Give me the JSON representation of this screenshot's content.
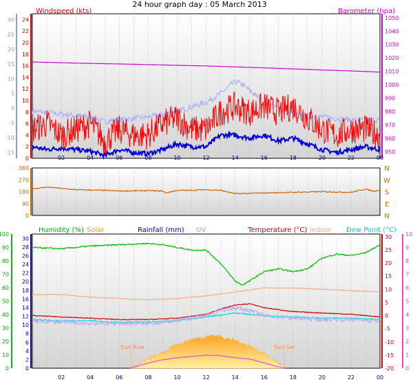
{
  "title": "24 hour graph day : 05 March 2013",
  "chart_data": [
    {
      "type": "line",
      "panel": "wind-pressure",
      "x_label_ticks": [
        "02",
        "04",
        "06",
        "08",
        "10",
        "12",
        "14",
        "16",
        "18",
        "20",
        "22",
        "00"
      ],
      "left_axis": {
        "label": "Windspeed (kts)",
        "ticks": [
          0,
          2,
          4,
          6,
          8,
          10,
          12,
          14,
          16,
          18,
          20,
          22,
          24
        ],
        "range": [
          0,
          25
        ]
      },
      "far_left_axis": {
        "ticks": [
          -15,
          -10,
          -5,
          0,
          5,
          10,
          15,
          20,
          25,
          30
        ],
        "range": [
          -17,
          32
        ]
      },
      "right_axis": {
        "label": "Barometer (hpa)",
        "ticks": [
          950,
          960,
          970,
          980,
          990,
          1000,
          1010,
          1020,
          1030,
          1040,
          1050
        ],
        "range": [
          945,
          1053
        ]
      },
      "series": [
        {
          "name": "Barometer",
          "color": "#cc00cc",
          "axis": "right",
          "x": [
            0,
            2,
            4,
            6,
            8,
            10,
            12,
            14,
            16,
            18,
            20,
            22,
            24
          ],
          "values": [
            1017,
            1016.4,
            1015.9,
            1015.5,
            1015,
            1014.5,
            1014,
            1013.3,
            1012.6,
            1011.8,
            1011,
            1010.3,
            1009.4
          ]
        },
        {
          "color": "#aab0ff",
          "axis": "far_left",
          "x": [
            0,
            2,
            4,
            5,
            6,
            8,
            10,
            12,
            13,
            14,
            14.5,
            15,
            16,
            18,
            20,
            22,
            24
          ],
          "values": [
            -1,
            -2,
            -3,
            -4.5,
            -4,
            -3,
            -1,
            2,
            5,
            9,
            8,
            6,
            2,
            -2,
            -3,
            -4,
            -4
          ]
        },
        {
          "color": "#0000dd",
          "axis": "left",
          "x": [
            0,
            1,
            2,
            3,
            4,
            5,
            6,
            7,
            8,
            9,
            10,
            11,
            12,
            13,
            14,
            15,
            16,
            17,
            18,
            19,
            20,
            21,
            22,
            23,
            24
          ],
          "values": [
            2,
            1.5,
            1.8,
            1.5,
            1.2,
            0.5,
            1.5,
            1,
            0.8,
            1.5,
            2.5,
            2,
            2,
            4,
            4,
            3.5,
            4,
            3,
            3.5,
            2.5,
            1.5,
            1,
            1.5,
            2,
            1.5
          ]
        },
        {
          "name": "Windspeed",
          "color": "#ff0000",
          "axis": "left",
          "x": [
            0,
            1,
            2,
            3,
            4,
            5,
            6,
            7,
            8,
            9,
            10,
            11,
            12,
            13,
            14,
            15,
            16,
            17,
            18,
            19,
            20,
            21,
            22,
            23,
            24
          ],
          "values": [
            5,
            6,
            4,
            5,
            6,
            3,
            5,
            4,
            4,
            6,
            7,
            5,
            5,
            8,
            9,
            8,
            9,
            8,
            9,
            7,
            5,
            4,
            5,
            5,
            4
          ]
        }
      ]
    },
    {
      "type": "line",
      "panel": "wind-direction",
      "left_axis": {
        "ticks": [
          0,
          90,
          180,
          270,
          360
        ],
        "range": [
          0,
          360
        ]
      },
      "right_axis": {
        "ticks": [
          "N",
          "E",
          "S",
          "W",
          "N"
        ]
      },
      "series": [
        {
          "color": "#cc6600",
          "x": [
            0,
            1,
            2,
            3,
            5,
            6,
            8,
            9,
            9.2,
            10,
            11,
            12,
            13,
            14,
            16,
            18,
            20,
            22,
            23,
            23.5,
            24
          ],
          "values": [
            200,
            215,
            205,
            195,
            190,
            185,
            188,
            185,
            170,
            190,
            190,
            195,
            190,
            165,
            170,
            175,
            180,
            175,
            200,
            185,
            190
          ]
        }
      ]
    },
    {
      "type": "line",
      "panel": "temp-humidity",
      "legend": [
        "Humidity (%)",
        "Solar",
        "Rainfall (mm)",
        "UV",
        "Temperature (°C)",
        "Indoor",
        "Dew Point (°C)"
      ],
      "x_label_ticks": [
        "02",
        "04",
        "06",
        "08",
        "10",
        "12",
        "14",
        "16",
        "18",
        "20",
        "22",
        "00"
      ],
      "markers": [
        {
          "label": "Sun Rise",
          "x": 6.8
        },
        {
          "label": "Sun Set",
          "x": 17.4
        }
      ],
      "axes": {
        "humidity": {
          "ticks": [
            0,
            10,
            20,
            30,
            40,
            50,
            60,
            70,
            80,
            90,
            100
          ],
          "range": [
            0,
            100
          ]
        },
        "rainfall": {
          "ticks": [
            0,
            2,
            4,
            6,
            8,
            10,
            12,
            14,
            16,
            18,
            20,
            22,
            24,
            26,
            28,
            30
          ],
          "range": [
            0,
            31
          ]
        },
        "temperature": {
          "ticks": [
            -20,
            -15,
            -10,
            -5,
            0,
            5,
            10,
            15,
            20,
            25,
            30
          ],
          "range": [
            -20,
            31
          ]
        },
        "uv": {
          "ticks": [
            0,
            1,
            2,
            3,
            4,
            5,
            6,
            7,
            8,
            9,
            10
          ],
          "range": [
            0,
            10
          ]
        }
      },
      "series": [
        {
          "name": "Humidity (%)",
          "color": "#00bb00",
          "axis": "humidity",
          "x": [
            0,
            2,
            4,
            6,
            8,
            9,
            10,
            11,
            12,
            13,
            14,
            14.5,
            15,
            16,
            17,
            18,
            19,
            20,
            21,
            22,
            23,
            24
          ],
          "values": [
            90,
            89,
            91,
            92,
            93,
            92,
            90,
            88,
            88,
            78,
            65,
            62,
            65,
            72,
            74,
            72,
            74,
            82,
            85,
            84,
            86,
            92
          ]
        },
        {
          "name": "Indoor",
          "color": "#ffaa88",
          "axis": "temperature",
          "x": [
            0,
            2,
            4,
            6,
            8,
            10,
            12,
            14,
            16,
            18,
            20,
            22,
            24
          ],
          "values": [
            8,
            8,
            7,
            6.5,
            6,
            6.5,
            7.5,
            9,
            10.5,
            10.5,
            10,
            9.5,
            9
          ]
        },
        {
          "name": "Temperature (°C)",
          "color": "#cc0000",
          "axis": "temperature",
          "x": [
            0,
            2,
            4,
            6,
            8,
            10,
            12,
            13,
            14,
            15,
            16,
            18,
            20,
            22,
            24
          ],
          "values": [
            0,
            -0.5,
            -1,
            -1.5,
            -1.5,
            -1,
            0.5,
            2.5,
            4,
            4.5,
            3,
            1.5,
            1,
            0.5,
            -0.5
          ]
        },
        {
          "name": "Dew Point (°C)",
          "color": "#00dddd",
          "axis": "temperature",
          "x": [
            0,
            2,
            4,
            6,
            8,
            10,
            12,
            14,
            16,
            18,
            20,
            22,
            24
          ],
          "values": [
            -1.5,
            -2,
            -2,
            -2.5,
            -2.5,
            -2,
            -0.5,
            1,
            0,
            -0.5,
            -1,
            -1,
            -1.5
          ]
        },
        {
          "name": "UV",
          "color": "#bbaaff",
          "axis": "temperature",
          "x": [
            0,
            2,
            4,
            6,
            8,
            10,
            12,
            13,
            14,
            15,
            16,
            18,
            20,
            22,
            24
          ],
          "values": [
            -2,
            -2.5,
            -3,
            -3,
            -3,
            -2,
            0,
            2,
            3,
            2,
            0,
            -1,
            -1.5,
            -1.5,
            -2
          ]
        },
        {
          "name": "Solar",
          "color": "#ffb030",
          "axis": "temperature",
          "x": [
            6.8,
            8,
            9,
            10,
            11,
            12,
            12.5,
            13,
            14,
            15,
            16,
            17,
            17.4
          ],
          "values": [
            -20,
            -16.5,
            -14,
            -11,
            -9,
            -8,
            -7.5,
            -8,
            -9.5,
            -11.5,
            -14.5,
            -18,
            -20
          ]
        },
        {
          "color": "#dd55dd",
          "axis": "temperature",
          "x": [
            6.8,
            8,
            9,
            10,
            11,
            12,
            13,
            14,
            15,
            16,
            17,
            17.4
          ],
          "values": [
            -20,
            -18,
            -16.8,
            -16,
            -15.5,
            -15,
            -15.2,
            -16,
            -16.5,
            -18,
            -19.5,
            -20
          ]
        }
      ]
    }
  ]
}
